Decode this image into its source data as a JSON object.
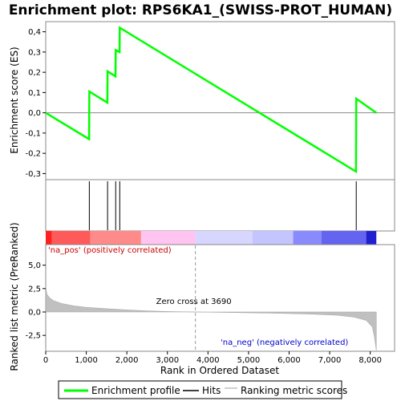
{
  "chart_data": {
    "type": "line",
    "title": "Enrichment plot: RPS6KA1_(SWISS-PROT_HUMAN)",
    "top_panel": {
      "ylabel": "Enrichment score (ES)",
      "ylim": [
        -0.33,
        0.45
      ],
      "yticks": [
        -0.3,
        -0.2,
        -0.1,
        0.0,
        0.1,
        0.2,
        0.3,
        0.4
      ],
      "ytick_labels": [
        "-0,3",
        "-0,2",
        "-0,1",
        "0,0",
        "0,1",
        "0,2",
        "0,3",
        "0,4"
      ],
      "series": [
        {
          "name": "Enrichment profile",
          "color": "#00ff00",
          "x": [
            0,
            1070,
            1075,
            1520,
            1525,
            1720,
            1725,
            1820,
            1825,
            7650,
            7655,
            8150
          ],
          "y": [
            0.0,
            -0.13,
            0.105,
            0.05,
            0.205,
            0.18,
            0.31,
            0.3,
            0.42,
            -0.29,
            0.07,
            0.0
          ]
        }
      ]
    },
    "hits": {
      "name": "Hits",
      "positions": [
        1075,
        1525,
        1725,
        1825,
        7655
      ]
    },
    "color_bar": {
      "pos_label": "'na_pos' (positively correlated)",
      "neg_label": "'na_neg' (negatively correlated)",
      "pos_color": "#cc0000",
      "neg_color": "#0000cc"
    },
    "bottom_panel": {
      "ylabel": "Ranked list metric (PreRanked)",
      "xlabel": "Rank in Ordered Dataset",
      "ylim": [
        -4.2,
        7.2
      ],
      "yticks": [
        -2.5,
        0.0,
        2.5,
        5.0
      ],
      "ytick_labels": [
        "-2,5",
        "0,0",
        "2,5",
        "5,0"
      ],
      "xlim": [
        0,
        8600
      ],
      "xticks": [
        0,
        1000,
        2000,
        3000,
        4000,
        5000,
        6000,
        7000,
        8000
      ],
      "xtick_labels": [
        "0",
        "1,000",
        "2,000",
        "3,000",
        "4,000",
        "5,000",
        "6,000",
        "7,000",
        "8,000"
      ],
      "zero_cross_label": "Zero cross at 3690",
      "zero_cross": 3690,
      "series": {
        "name": "Ranking metric scores",
        "color": "#c0c0c0",
        "x": [
          0,
          30,
          100,
          200,
          400,
          700,
          1000,
          1500,
          2000,
          2500,
          3000,
          3690,
          4500,
          5500,
          6500,
          7200,
          7600,
          7900,
          8050,
          8100,
          8150
        ],
        "y": [
          2.7,
          1.9,
          1.5,
          1.2,
          0.9,
          0.65,
          0.5,
          0.35,
          0.22,
          0.12,
          0.05,
          0.0,
          -0.05,
          -0.12,
          -0.22,
          -0.35,
          -0.55,
          -0.9,
          -1.6,
          -2.6,
          -4.1
        ]
      }
    },
    "legend": {
      "items": [
        "Enrichment profile",
        "Hits",
        "Ranking metric scores"
      ]
    }
  }
}
